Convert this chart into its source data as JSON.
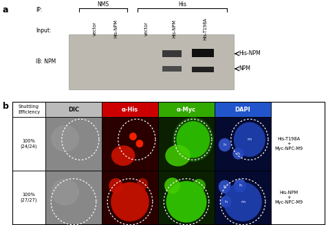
{
  "panel_a": {
    "ip_label": "IP:",
    "input_label": "Input:",
    "ib_label": "IB: NPM",
    "nms_lanes": [
      "vector",
      "His-NPM"
    ],
    "his_lanes": [
      "vector",
      "His-NPM",
      "His-T198A"
    ],
    "band_label_upper": "His-NPM",
    "band_label_lower": "NPM",
    "gel_bg": "#bdb9b0",
    "band_dark": "#141414",
    "band_med": "#383838"
  },
  "panel_b": {
    "col_headers": [
      "DIC",
      "α-His",
      "α-Myc",
      "DAPI"
    ],
    "col_header_colors": [
      "#bbbbbb",
      "#cc0000",
      "#33aa00",
      "#2255cc"
    ],
    "col_header_text_colors": [
      "#111111",
      "#ffffff",
      "#ffffff",
      "#ffffff"
    ],
    "efficiency_header": "Shuttling\nEfficiency",
    "rows": [
      {
        "efficiency": "100%\n(24/24)",
        "label": "His-T198A\n+\nMyc-NPC-M9"
      },
      {
        "efficiency": "100%\n(27/27)",
        "label": "His-NPM\n+\nMyc-NPC-M9"
      }
    ],
    "dic_bg": "#888888",
    "his_bg": "#2a0000",
    "myc_bg": "#0a2000",
    "dapi_bg": "#050a30"
  },
  "bg_color": "#ffffff",
  "fs_tiny": 4.5,
  "fs_small": 5.5,
  "fs_med": 6.5,
  "fs_bold": 9
}
